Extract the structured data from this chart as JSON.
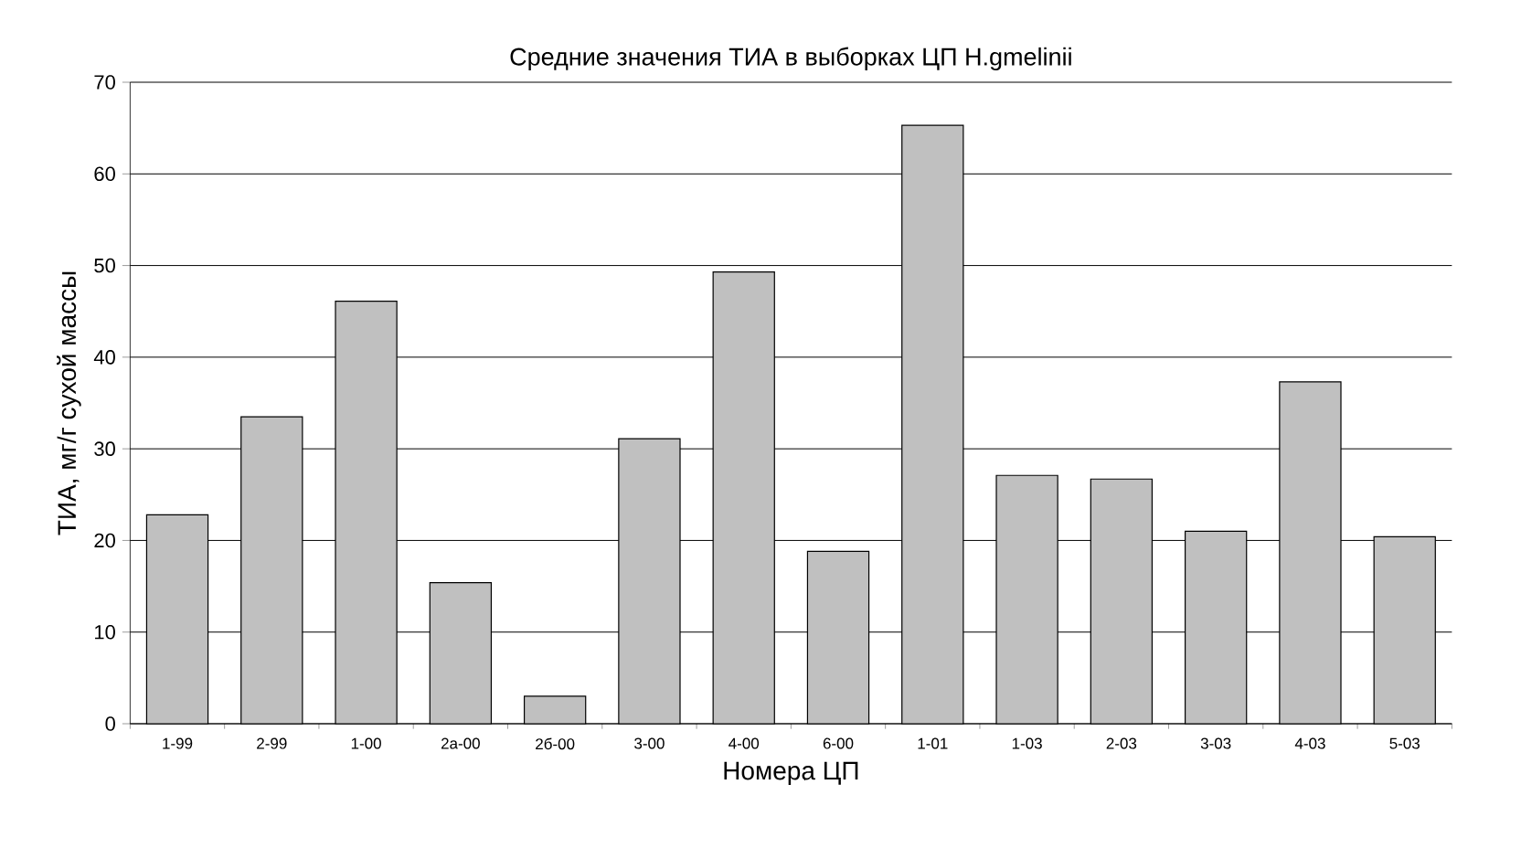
{
  "chart_data": {
    "type": "bar",
    "title": "Средние значения ТИА в выборках ЦП H.gmelinii",
    "xlabel": "Номера ЦП",
    "ylabel": "ТИА, мг/г сухой массы",
    "categories": [
      "1-99",
      "2-99",
      "1-00",
      "2а-00",
      "2б-00",
      "3-00",
      "4-00",
      "6-00",
      "1-01",
      "1-03",
      "2-03",
      "3-03",
      "4-03",
      "5-03"
    ],
    "values": [
      22.8,
      33.5,
      46.1,
      15.4,
      3.0,
      31.1,
      49.3,
      18.8,
      65.3,
      27.1,
      26.7,
      21.0,
      37.3,
      20.4
    ],
    "color": "#c0c0c0",
    "ylim": [
      0,
      70
    ],
    "yticks": [
      0,
      10,
      20,
      30,
      40,
      50,
      60,
      70
    ],
    "grid": "y"
  }
}
